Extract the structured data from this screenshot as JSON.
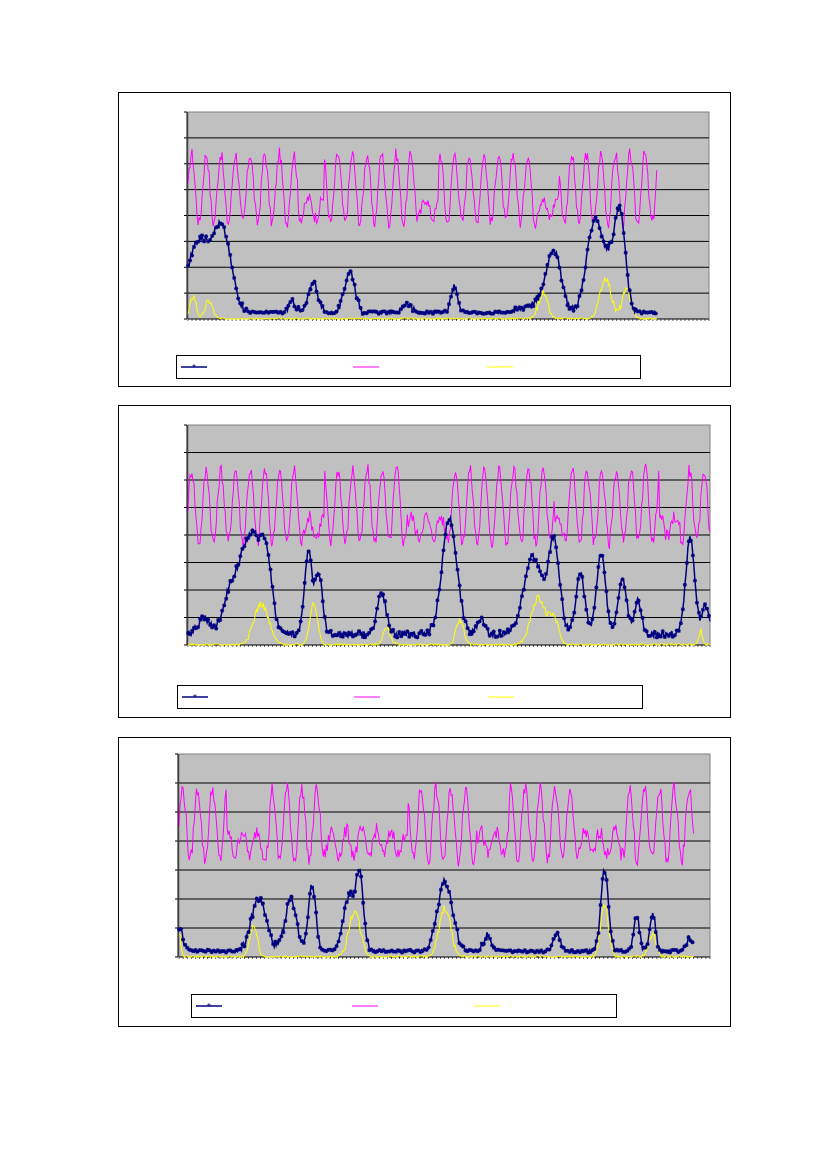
{
  "page": {
    "background": "#ffffff"
  },
  "colors": {
    "plot_bg": "#c0c0c0",
    "grid": "#000000",
    "series_a": "#000080",
    "series_b": "#ff00ff",
    "series_c": "#ffff00"
  },
  "chart_data": [
    {
      "type": "line",
      "title": "",
      "xlabel": "",
      "ylabel": "",
      "ylim": [
        0,
        8
      ],
      "n_points": 520,
      "grid": "horizontal",
      "legend": "bottom",
      "series": [
        {
          "marker": "star",
          "color": "#000080",
          "base": 0.25,
          "peaks": [
            [
              0.02,
              2.7,
              0.03
            ],
            [
              0.065,
              3.1,
              0.025
            ],
            [
              0.24,
              1.2,
              0.012
            ],
            [
              0.31,
              1.6,
              0.014
            ],
            [
              0.2,
              0.4,
              0.01
            ],
            [
              0.42,
              0.4,
              0.01
            ],
            [
              0.51,
              1.0,
              0.01
            ],
            [
              0.66,
              0.3,
              0.03
            ],
            [
              0.7,
              2.4,
              0.02
            ],
            [
              0.78,
              3.6,
              0.022
            ],
            [
              0.82,
              2.6,
              0.02
            ],
            [
              0.83,
              1.8,
              0.012
            ]
          ],
          "end_frac": 0.9
        },
        {
          "color": "#ff00ff",
          "base": 4.0,
          "amp": 2.8,
          "period_frac": 0.028,
          "groups": [
            [
              0.0,
              0.21
            ],
            [
              0.26,
              0.44
            ],
            [
              0.48,
              0.67
            ],
            [
              0.71,
              0.9
            ]
          ],
          "low_amp": 0.8,
          "end_frac": 0.9
        },
        {
          "color": "#ffff00",
          "base": 0.0,
          "peaks": [
            [
              0.01,
              0.9,
              0.008
            ],
            [
              0.04,
              0.7,
              0.01
            ],
            [
              0.68,
              1.0,
              0.012
            ],
            [
              0.8,
              1.6,
              0.015
            ],
            [
              0.84,
              1.1,
              0.012
            ]
          ],
          "end_frac": 0.9
        }
      ]
    },
    {
      "type": "line",
      "title": "",
      "xlabel": "",
      "ylabel": "",
      "ylim": [
        0,
        8
      ],
      "n_points": 520,
      "grid": "horizontal",
      "legend": "bottom",
      "series": [
        {
          "marker": "star",
          "color": "#000080",
          "base": 0.4,
          "peaks": [
            [
              0.03,
              0.6,
              0.015
            ],
            [
              0.08,
              1.2,
              0.02
            ],
            [
              0.12,
              3.6,
              0.03
            ],
            [
              0.15,
              2.0,
              0.015
            ],
            [
              0.23,
              3.0,
              0.01
            ],
            [
              0.25,
              2.2,
              0.01
            ],
            [
              0.37,
              1.5,
              0.012
            ],
            [
              0.5,
              4.2,
              0.02
            ],
            [
              0.56,
              0.6,
              0.01
            ],
            [
              0.66,
              2.8,
              0.025
            ],
            [
              0.7,
              3.3,
              0.015
            ],
            [
              0.75,
              2.2,
              0.012
            ],
            [
              0.79,
              2.9,
              0.012
            ],
            [
              0.83,
              2.0,
              0.012
            ],
            [
              0.86,
              1.2,
              0.01
            ],
            [
              0.96,
              3.5,
              0.012
            ],
            [
              0.99,
              1.0,
              0.01
            ]
          ],
          "end_frac": 1.0
        },
        {
          "color": "#ff00ff",
          "base": 4.0,
          "amp": 2.8,
          "period_frac": 0.028,
          "groups": [
            [
              0.0,
              0.22
            ],
            [
              0.26,
              0.42
            ],
            [
              0.5,
              0.7
            ],
            [
              0.72,
              0.9
            ],
            [
              0.94,
              1.0
            ]
          ],
          "low_amp": 0.8,
          "end_frac": 1.0
        },
        {
          "color": "#ffff00",
          "base": 0.0,
          "peaks": [
            [
              0.14,
              1.5,
              0.02
            ],
            [
              0.24,
              1.6,
              0.01
            ],
            [
              0.38,
              0.6,
              0.01
            ],
            [
              0.52,
              0.9,
              0.01
            ],
            [
              0.67,
              1.7,
              0.02
            ],
            [
              0.7,
              0.9,
              0.012
            ],
            [
              0.98,
              0.5,
              0.005
            ]
          ],
          "end_frac": 1.0
        }
      ]
    },
    {
      "type": "line",
      "title": "",
      "xlabel": "",
      "ylabel": "",
      "ylim": [
        0,
        7
      ],
      "n_points": 520,
      "grid": "horizontal",
      "legend": "bottom",
      "series": [
        {
          "marker": "star",
          "color": "#000080",
          "base": 0.2,
          "peaks": [
            [
              0.0,
              0.8,
              0.01
            ],
            [
              0.15,
              1.8,
              0.02
            ],
            [
              0.21,
              1.8,
              0.015
            ],
            [
              0.25,
              2.3,
              0.01
            ],
            [
              0.32,
              1.9,
              0.015
            ],
            [
              0.34,
              2.4,
              0.01
            ],
            [
              0.5,
              2.4,
              0.02
            ],
            [
              0.58,
              0.6,
              0.01
            ],
            [
              0.71,
              0.6,
              0.01
            ],
            [
              0.8,
              2.8,
              0.01
            ],
            [
              0.86,
              1.2,
              0.008
            ],
            [
              0.89,
              1.3,
              0.008
            ],
            [
              0.96,
              0.4,
              0.01
            ]
          ],
          "end_frac": 0.97
        },
        {
          "color": "#ff00ff",
          "base": 3.6,
          "amp": 2.6,
          "period_frac": 0.028,
          "groups": [
            [
              0.0,
              0.09
            ],
            [
              0.17,
              0.27
            ],
            [
              0.43,
              0.56
            ],
            [
              0.62,
              0.75
            ],
            [
              0.84,
              0.97
            ]
          ],
          "low_amp": 0.9,
          "end_frac": 0.97
        },
        {
          "color": "#ffff00",
          "base": 0.0,
          "peaks": [
            [
              0.0,
              0.8,
              0.005
            ],
            [
              0.14,
              1.1,
              0.01
            ],
            [
              0.33,
              1.6,
              0.015
            ],
            [
              0.5,
              1.7,
              0.015
            ],
            [
              0.8,
              1.8,
              0.01
            ],
            [
              0.89,
              0.8,
              0.01
            ]
          ],
          "end_frac": 0.97
        }
      ]
    }
  ]
}
